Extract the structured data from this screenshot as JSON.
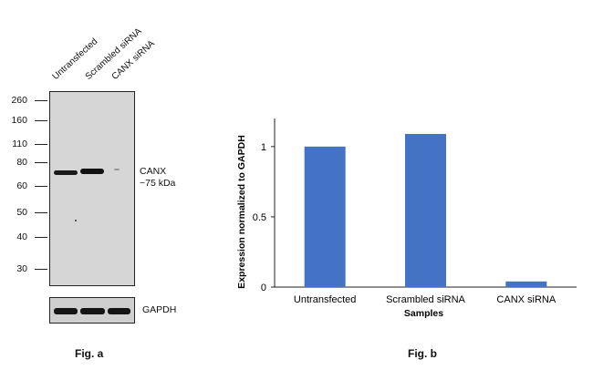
{
  "fig_a": {
    "label": "Fig. a",
    "lanes": [
      "Untransfected",
      "Scrambled siRNA",
      "CANX siRNA"
    ],
    "mw_markers": [
      "260",
      "160",
      "110",
      "80",
      "60",
      "50",
      "40",
      "30"
    ],
    "target_label_line1": "CANX",
    "target_label_line2": "~75 kDa",
    "loading_control": "GAPDH"
  },
  "fig_b": {
    "label": "Fig. b"
  },
  "chart_data": {
    "type": "bar",
    "categories": [
      "Untransfected",
      "Scrambled siRNA",
      "CANX siRNA"
    ],
    "values": [
      1.0,
      1.09,
      0.04
    ],
    "xlabel": "Samples",
    "ylabel": "Expression normalized to GAPDH",
    "ylim": [
      0,
      1.2
    ],
    "yticks": [
      0,
      0.5,
      1
    ],
    "ytick_labels": [
      "0",
      "0.5",
      "1"
    ],
    "bar_color": "#4472c4",
    "grid": false
  }
}
